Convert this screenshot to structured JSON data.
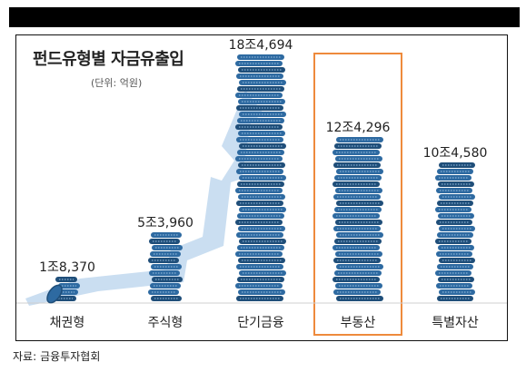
{
  "title": "펀드유형별 자금유출입",
  "unit": "(단위: 억원)",
  "source": {
    "label": "자료:",
    "org": "금융투자협회"
  },
  "colors": {
    "coin_dark": "#1f4e79",
    "coin_mid": "#2e6aa1",
    "coin_light": "#9cc1e3",
    "arrow": "#b8d3ec",
    "highlight": "#ee8a3c",
    "axis": "#cfcfcf"
  },
  "chart_data": {
    "type": "bar",
    "title": "펀드유형별 자금유출입",
    "ylabel": "",
    "xlabel": "",
    "unit": "억원",
    "categories": [
      "채권형",
      "주식형",
      "단기금융",
      "부동산",
      "특별자산"
    ],
    "values": [
      18370,
      53960,
      184694,
      124296,
      104580
    ],
    "value_labels": [
      "1조8,370",
      "5조3,960",
      "18조4,694",
      "12조4,296",
      "10조4,580"
    ],
    "highlight_category": "부동산",
    "grid": false,
    "legend": "none"
  }
}
